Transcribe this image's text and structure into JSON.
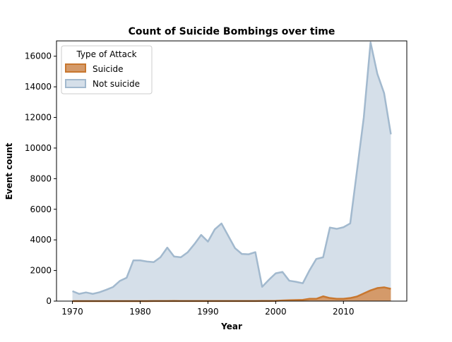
{
  "chart_data": {
    "type": "area",
    "title": "Count of Suicide Bombings over time",
    "xlabel": "Year",
    "ylabel": "Event count",
    "xlim": [
      1967.65,
      2019.35
    ],
    "ylim": [
      0,
      17000
    ],
    "xticks": [
      1970,
      1980,
      1990,
      2000,
      2010
    ],
    "yticks": [
      0,
      2000,
      4000,
      6000,
      8000,
      10000,
      12000,
      14000,
      16000
    ],
    "grid": false,
    "legend": {
      "title": "Type of Attack",
      "placement": "top-left"
    },
    "x": [
      1970,
      1971,
      1972,
      1973,
      1974,
      1975,
      1976,
      1977,
      1978,
      1979,
      1980,
      1981,
      1982,
      1983,
      1984,
      1985,
      1986,
      1987,
      1988,
      1989,
      1990,
      1991,
      1992,
      1994,
      1995,
      1996,
      1997,
      1998,
      1999,
      2000,
      2001,
      2002,
      2003,
      2004,
      2005,
      2006,
      2007,
      2008,
      2009,
      2010,
      2011,
      2012,
      2013,
      2014,
      2015,
      2016,
      2017
    ],
    "series": [
      {
        "name": "Not suicide",
        "fill": "#d5dfe9",
        "stroke": "#a2b9ce",
        "values": [
          651,
          471,
          566,
          473,
          579,
          739,
          923,
          1319,
          1526,
          2662,
          2662,
          2586,
          2544,
          2870,
          3495,
          2915,
          2860,
          3183,
          3721,
          4324,
          3887,
          4683,
          5071,
          3456,
          3081,
          3058,
          3197,
          934,
          1395,
          1814,
          1906,
          1333,
          1262,
          1166,
          2017,
          2757,
          2863,
          4805,
          4721,
          4826,
          5076,
          8522,
          11996,
          16903,
          14852,
          13587,
          10900
        ]
      },
      {
        "name": "Suicide",
        "fill": "#d49a6a",
        "stroke": "#c8772f",
        "values": [
          0,
          0,
          0,
          0,
          0,
          0,
          0,
          0,
          0,
          0,
          0,
          2,
          5,
          8,
          4,
          11,
          7,
          4,
          3,
          4,
          5,
          7,
          4,
          8,
          5,
          8,
          6,
          9,
          10,
          20,
          40,
          60,
          70,
          80,
          150,
          150,
          310,
          200,
          150,
          150,
          200,
          300,
          500,
          700,
          850,
          900,
          800
        ]
      }
    ]
  }
}
